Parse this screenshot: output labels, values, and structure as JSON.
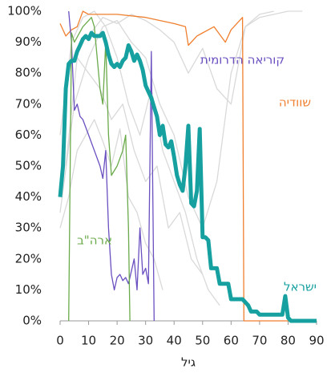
{
  "chart_data": {
    "type": "line",
    "x_label": "גיל",
    "xlim": [
      0,
      90
    ],
    "xticks": [
      0,
      10,
      20,
      30,
      40,
      50,
      60,
      70,
      80,
      90
    ],
    "ylim": [
      0,
      100
    ],
    "yticks": [
      {
        "value": 0,
        "label": "0%"
      },
      {
        "value": 10,
        "label": "10%"
      },
      {
        "value": 20,
        "label": "20%"
      },
      {
        "value": 30,
        "label": "30%"
      },
      {
        "value": 40,
        "label": "40%"
      },
      {
        "value": 50,
        "label": "50%"
      },
      {
        "value": 60,
        "label": "60%"
      },
      {
        "value": 70,
        "label": "70%"
      },
      {
        "value": 80,
        "label": "80%"
      },
      {
        "value": 90,
        "label": "90%"
      },
      {
        "value": 100,
        "label": "100%"
      }
    ],
    "series": [
      {
        "color": "#d9d9d9",
        "x": [
          0,
          5,
          10,
          15,
          20,
          25,
          30,
          35,
          40,
          45,
          50,
          55,
          60,
          65,
          70,
          75
        ],
        "values": [
          35,
          70,
          85,
          95,
          97,
          90,
          85,
          70,
          60,
          40,
          30,
          45,
          80,
          95,
          99,
          100
        ]
      },
      {
        "color": "#d9d9d9",
        "x": [
          0,
          4,
          8,
          12,
          16,
          20,
          24,
          28,
          32,
          36,
          40,
          44,
          48,
          52,
          56
        ],
        "values": [
          60,
          90,
          98,
          100,
          95,
          85,
          70,
          60,
          75,
          55,
          45,
          35,
          20,
          10,
          5
        ]
      },
      {
        "color": "#d9d9d9",
        "x": [
          2,
          6,
          10,
          14,
          18,
          22,
          26,
          30,
          34,
          38,
          42,
          46,
          50
        ],
        "values": [
          50,
          85,
          80,
          75,
          65,
          70,
          55,
          45,
          50,
          30,
          35,
          20,
          15
        ]
      },
      {
        "color": "#d9d9d9",
        "x": [
          10,
          15,
          20,
          25,
          30,
          35,
          40,
          45,
          50,
          55,
          60,
          65,
          70,
          75,
          80,
          85
        ],
        "values": [
          92,
          98,
          96,
          99,
          97,
          94,
          90,
          80,
          88,
          75,
          70,
          95,
          98,
          99,
          100,
          100
        ]
      },
      {
        "color": "#d9d9d9",
        "x": [
          0,
          3,
          6,
          9,
          12,
          15,
          18,
          21,
          24,
          27,
          30,
          33,
          36
        ],
        "values": [
          30,
          40,
          55,
          60,
          65,
          58,
          50,
          62,
          40,
          35,
          25,
          20,
          10
        ]
      },
      {
        "name": "שוודיה",
        "color": "#f07f2e",
        "x": [
          0,
          2,
          4,
          6,
          8,
          10,
          20,
          30,
          40,
          44,
          45,
          48,
          50,
          54,
          58,
          60,
          64,
          64.5,
          90
        ],
        "values": [
          96,
          92,
          94,
          95,
          100,
          99,
          99,
          98,
          96,
          95,
          89,
          92,
          93,
          95,
          90,
          94,
          98,
          0,
          0
        ]
      },
      {
        "name": "קוריאה הדרומית",
        "color": "#6a4fc0",
        "x": [
          3,
          4,
          5,
          6,
          7,
          8,
          10,
          12,
          14,
          15,
          16,
          17,
          18,
          19,
          20,
          21,
          22,
          23,
          24,
          26,
          27,
          28,
          29,
          30,
          31,
          32,
          33
        ],
        "values": [
          100,
          90,
          68,
          70,
          66,
          65,
          60,
          55,
          50,
          46,
          55,
          30,
          15,
          10,
          14,
          15,
          13,
          14,
          12,
          20,
          10,
          30,
          15,
          17,
          12,
          87,
          0
        ]
      },
      {
        "name": "ארה\"ב",
        "color": "#6aaa4a",
        "x": [
          3,
          4,
          5,
          8,
          10,
          11,
          12,
          14,
          15,
          16,
          17,
          18,
          20,
          22,
          23,
          24,
          24.5
        ],
        "values": [
          0,
          93,
          90,
          95,
          97,
          98,
          95,
          75,
          70,
          90,
          60,
          47,
          50,
          55,
          60,
          30,
          0
        ]
      },
      {
        "name": "ישראל",
        "color": "#16a0a0",
        "width": 5,
        "x": [
          0,
          1,
          2,
          3,
          4,
          5,
          6,
          7,
          8,
          9,
          10,
          11,
          12,
          13,
          14,
          15,
          16,
          17,
          18,
          19,
          20,
          21,
          22,
          23,
          24,
          25,
          26,
          27,
          28,
          29,
          30,
          31,
          32,
          33,
          34,
          35,
          36,
          37,
          38,
          39,
          40,
          41,
          42,
          43,
          44,
          45,
          46,
          47,
          48,
          49,
          50,
          51,
          52,
          53,
          54,
          55,
          56,
          57,
          58,
          59,
          60,
          61,
          62,
          63,
          64,
          65,
          66,
          67,
          68,
          69,
          70,
          71,
          72,
          73,
          74,
          75,
          76,
          77,
          78,
          79,
          80,
          81,
          82,
          83,
          84,
          85,
          86,
          87,
          88,
          89,
          90
        ],
        "values": [
          40,
          50,
          75,
          83,
          84,
          84,
          87,
          89,
          91,
          92,
          91,
          93,
          92,
          92,
          92,
          93,
          90,
          86,
          83,
          82,
          83,
          82,
          84,
          85,
          89,
          87,
          84,
          86,
          84,
          81,
          76,
          74,
          72,
          69,
          66,
          60,
          63,
          57,
          56,
          58,
          53,
          47,
          44,
          42,
          50,
          63,
          38,
          37,
          42,
          62,
          27,
          27,
          26,
          17,
          17,
          17,
          12,
          12,
          12,
          12,
          7,
          7,
          7,
          7,
          7,
          6,
          5,
          3,
          3,
          3,
          2,
          2,
          2,
          2,
          2,
          2,
          2,
          2,
          2,
          8,
          1,
          0,
          0,
          0,
          0,
          0,
          0,
          0,
          0,
          0,
          0
        ]
      }
    ]
  }
}
